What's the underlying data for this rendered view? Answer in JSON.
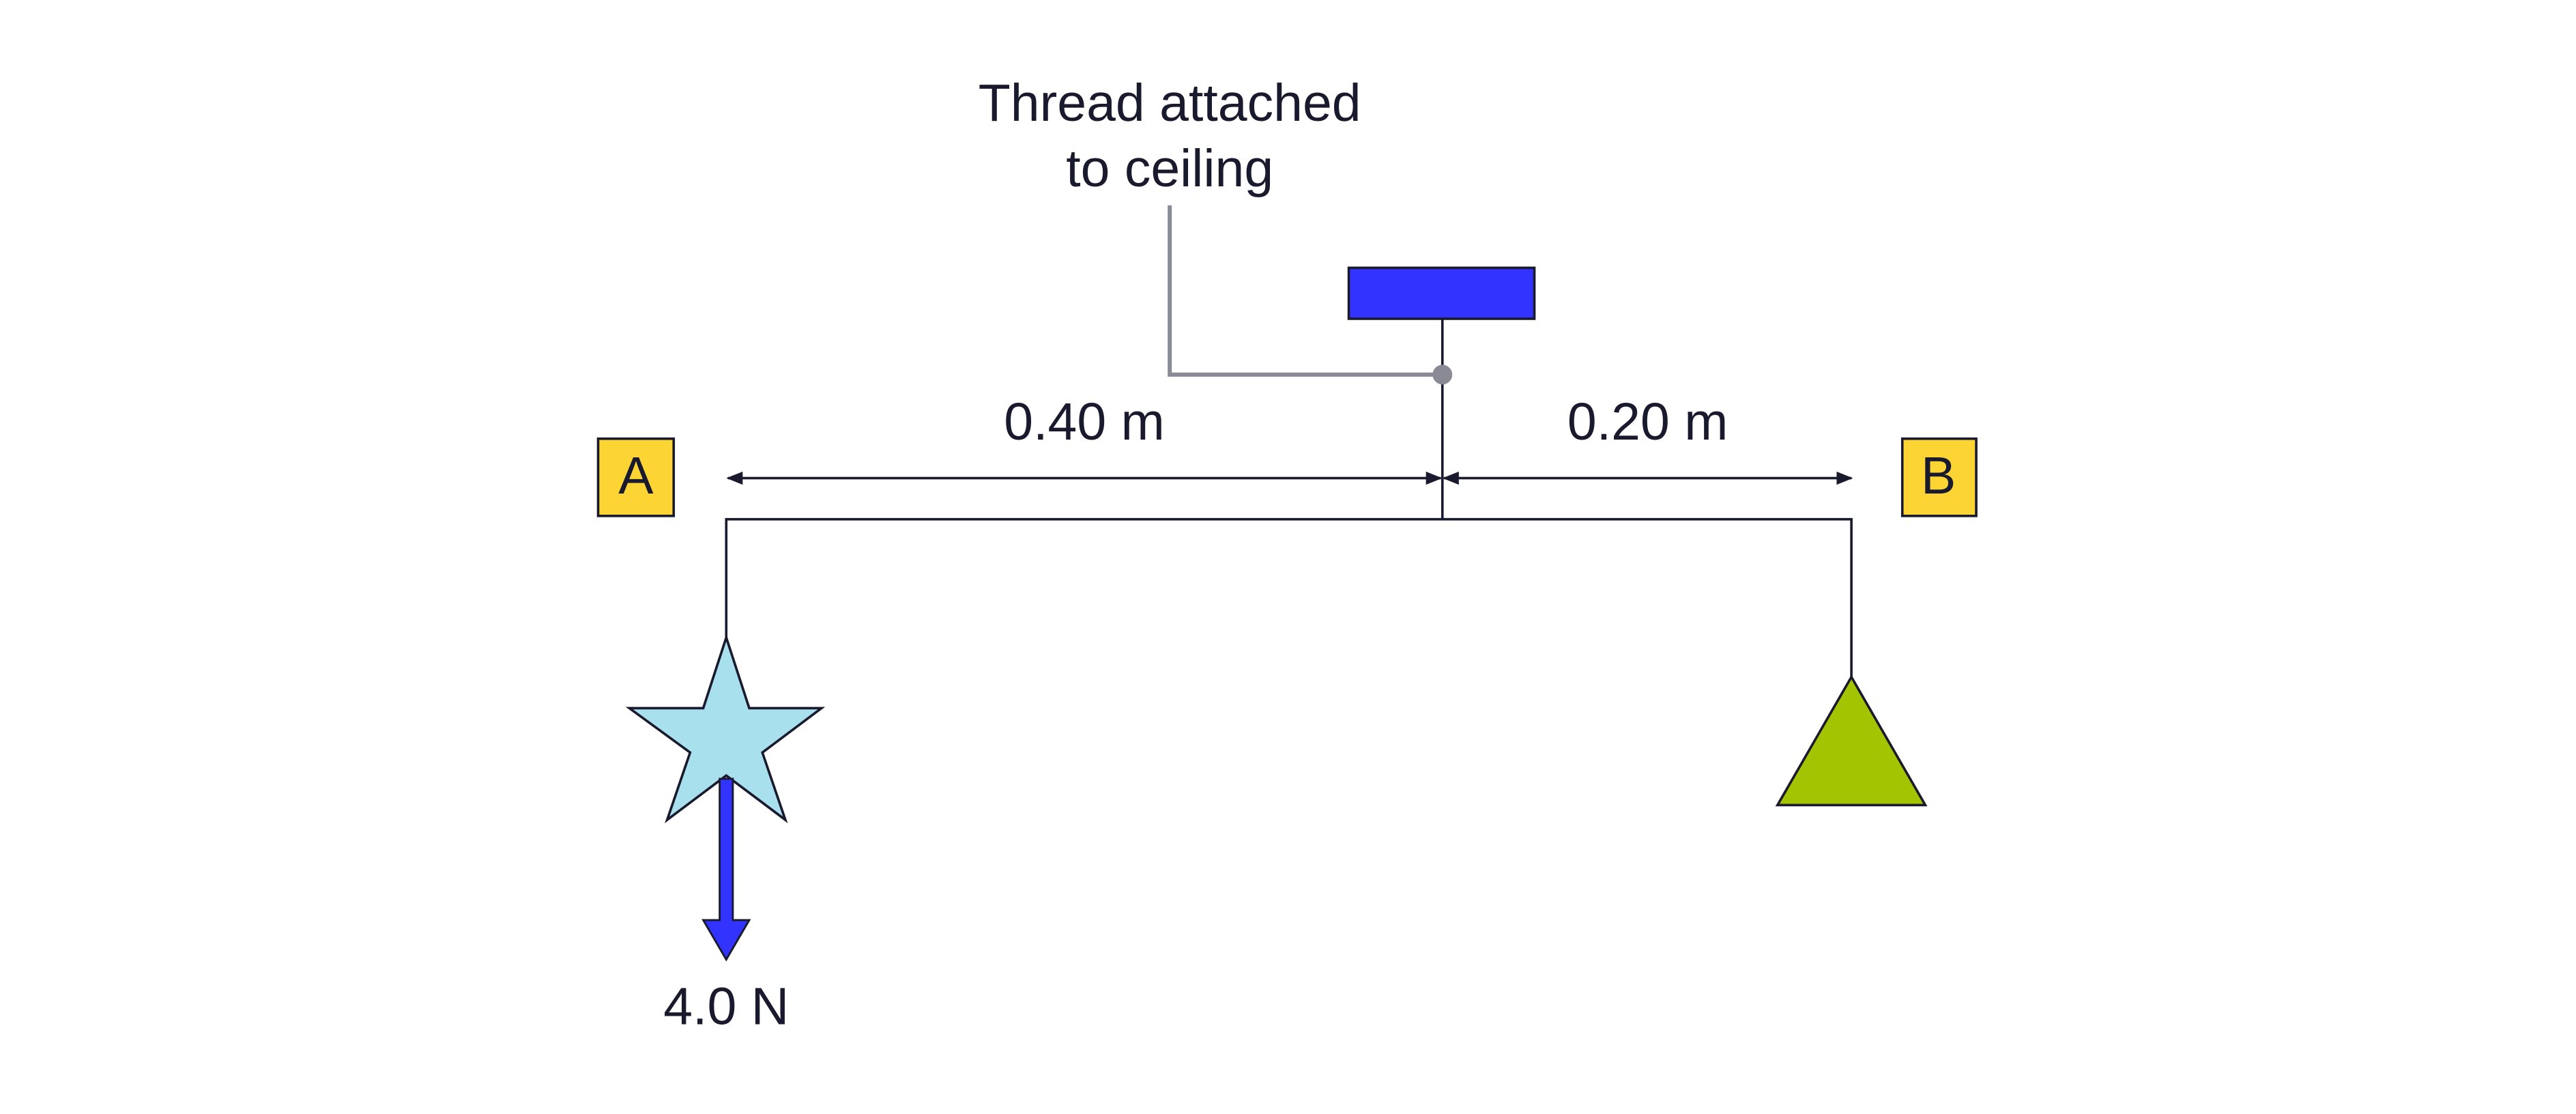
{
  "callout": {
    "lines": [
      "Thread attached",
      "to ceiling"
    ]
  },
  "dimensions": {
    "left": "0.40 m",
    "right": "0.20 m"
  },
  "points": {
    "left": "A",
    "right": "B"
  },
  "force": {
    "label": "4.0 N"
  }
}
